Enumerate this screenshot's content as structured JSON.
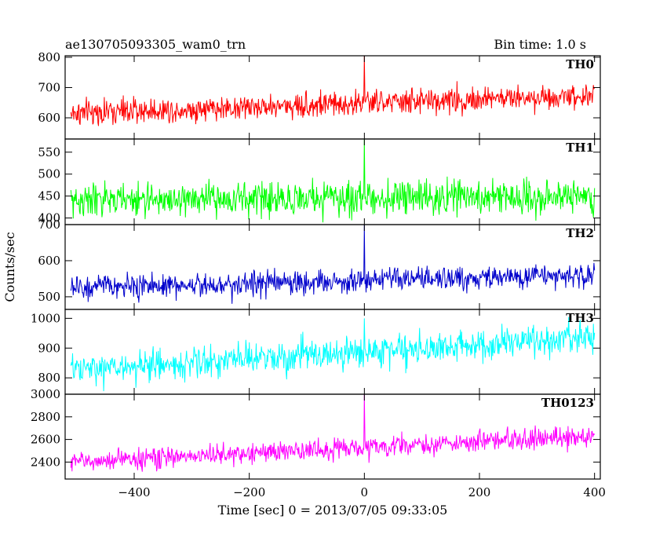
{
  "chart_data": {
    "type": "line",
    "title_left": "ae130705093305_wam0_trn",
    "title_right": "Bin time: 1.0 s",
    "xlabel": "Time [sec] 0 = 2013/07/05 09:33:05",
    "ylabel": "Counts/sec",
    "xlim": [
      -520,
      410
    ],
    "x_ticks": [
      -400,
      -200,
      0,
      200,
      400
    ],
    "x_tick_labels": [
      "−400",
      "−200",
      "0",
      "200",
      "400"
    ],
    "x_range_data": [
      -510,
      400
    ],
    "grid": false,
    "panels": [
      {
        "name": "TH0",
        "color": "#ff0000",
        "ylim": [
          530,
          805
        ],
        "y_ticks": [
          600,
          700,
          800
        ],
        "y_tick_labels": [
          "600",
          "700",
          "800"
        ],
        "trend": {
          "x": [
            -510,
            400
          ],
          "y": [
            615,
            675
          ]
        },
        "noise_sd": 28,
        "spike": {
          "x": 0,
          "y": 805
        }
      },
      {
        "name": "TH1",
        "color": "#00ff00",
        "ylim": [
          385,
          580
        ],
        "y_ticks": [
          400,
          450,
          500,
          550
        ],
        "y_tick_labels": [
          "400",
          "450",
          "500",
          "550"
        ],
        "trend": {
          "x": [
            -510,
            400
          ],
          "y": [
            440,
            450
          ]
        },
        "noise_sd": 25,
        "spike": {
          "x": 0,
          "y": 580
        }
      },
      {
        "name": "TH2",
        "color": "#0000cc",
        "ylim": [
          465,
          700
        ],
        "y_ticks": [
          500,
          600,
          700
        ],
        "y_tick_labels": [
          "500",
          "600",
          "700"
        ],
        "trend": {
          "x": [
            -510,
            400
          ],
          "y": [
            525,
            560
          ]
        },
        "noise_sd": 22,
        "spike": {
          "x": 0,
          "y": 700
        }
      },
      {
        "name": "TH3",
        "color": "#00ffff",
        "ylim": [
          745,
          1030
        ],
        "y_ticks": [
          800,
          900,
          1000
        ],
        "y_tick_labels": [
          "800",
          "900",
          "1000"
        ],
        "trend": {
          "x": [
            -510,
            400
          ],
          "y": [
            825,
            935
          ]
        },
        "noise_sd": 35,
        "spike": {
          "x": 0,
          "y": 1000
        }
      },
      {
        "name": "TH0123",
        "color": "#ff00ff",
        "ylim": [
          2250,
          3000
        ],
        "y_ticks": [
          2400,
          2600,
          2800,
          3000
        ],
        "y_tick_labels": [
          "2400",
          "2600",
          "2800",
          "3000"
        ],
        "trend": {
          "x": [
            -510,
            400
          ],
          "y": [
            2400,
            2630
          ]
        },
        "noise_sd": 60,
        "spike": {
          "x": 0,
          "y": 3000
        }
      }
    ]
  }
}
